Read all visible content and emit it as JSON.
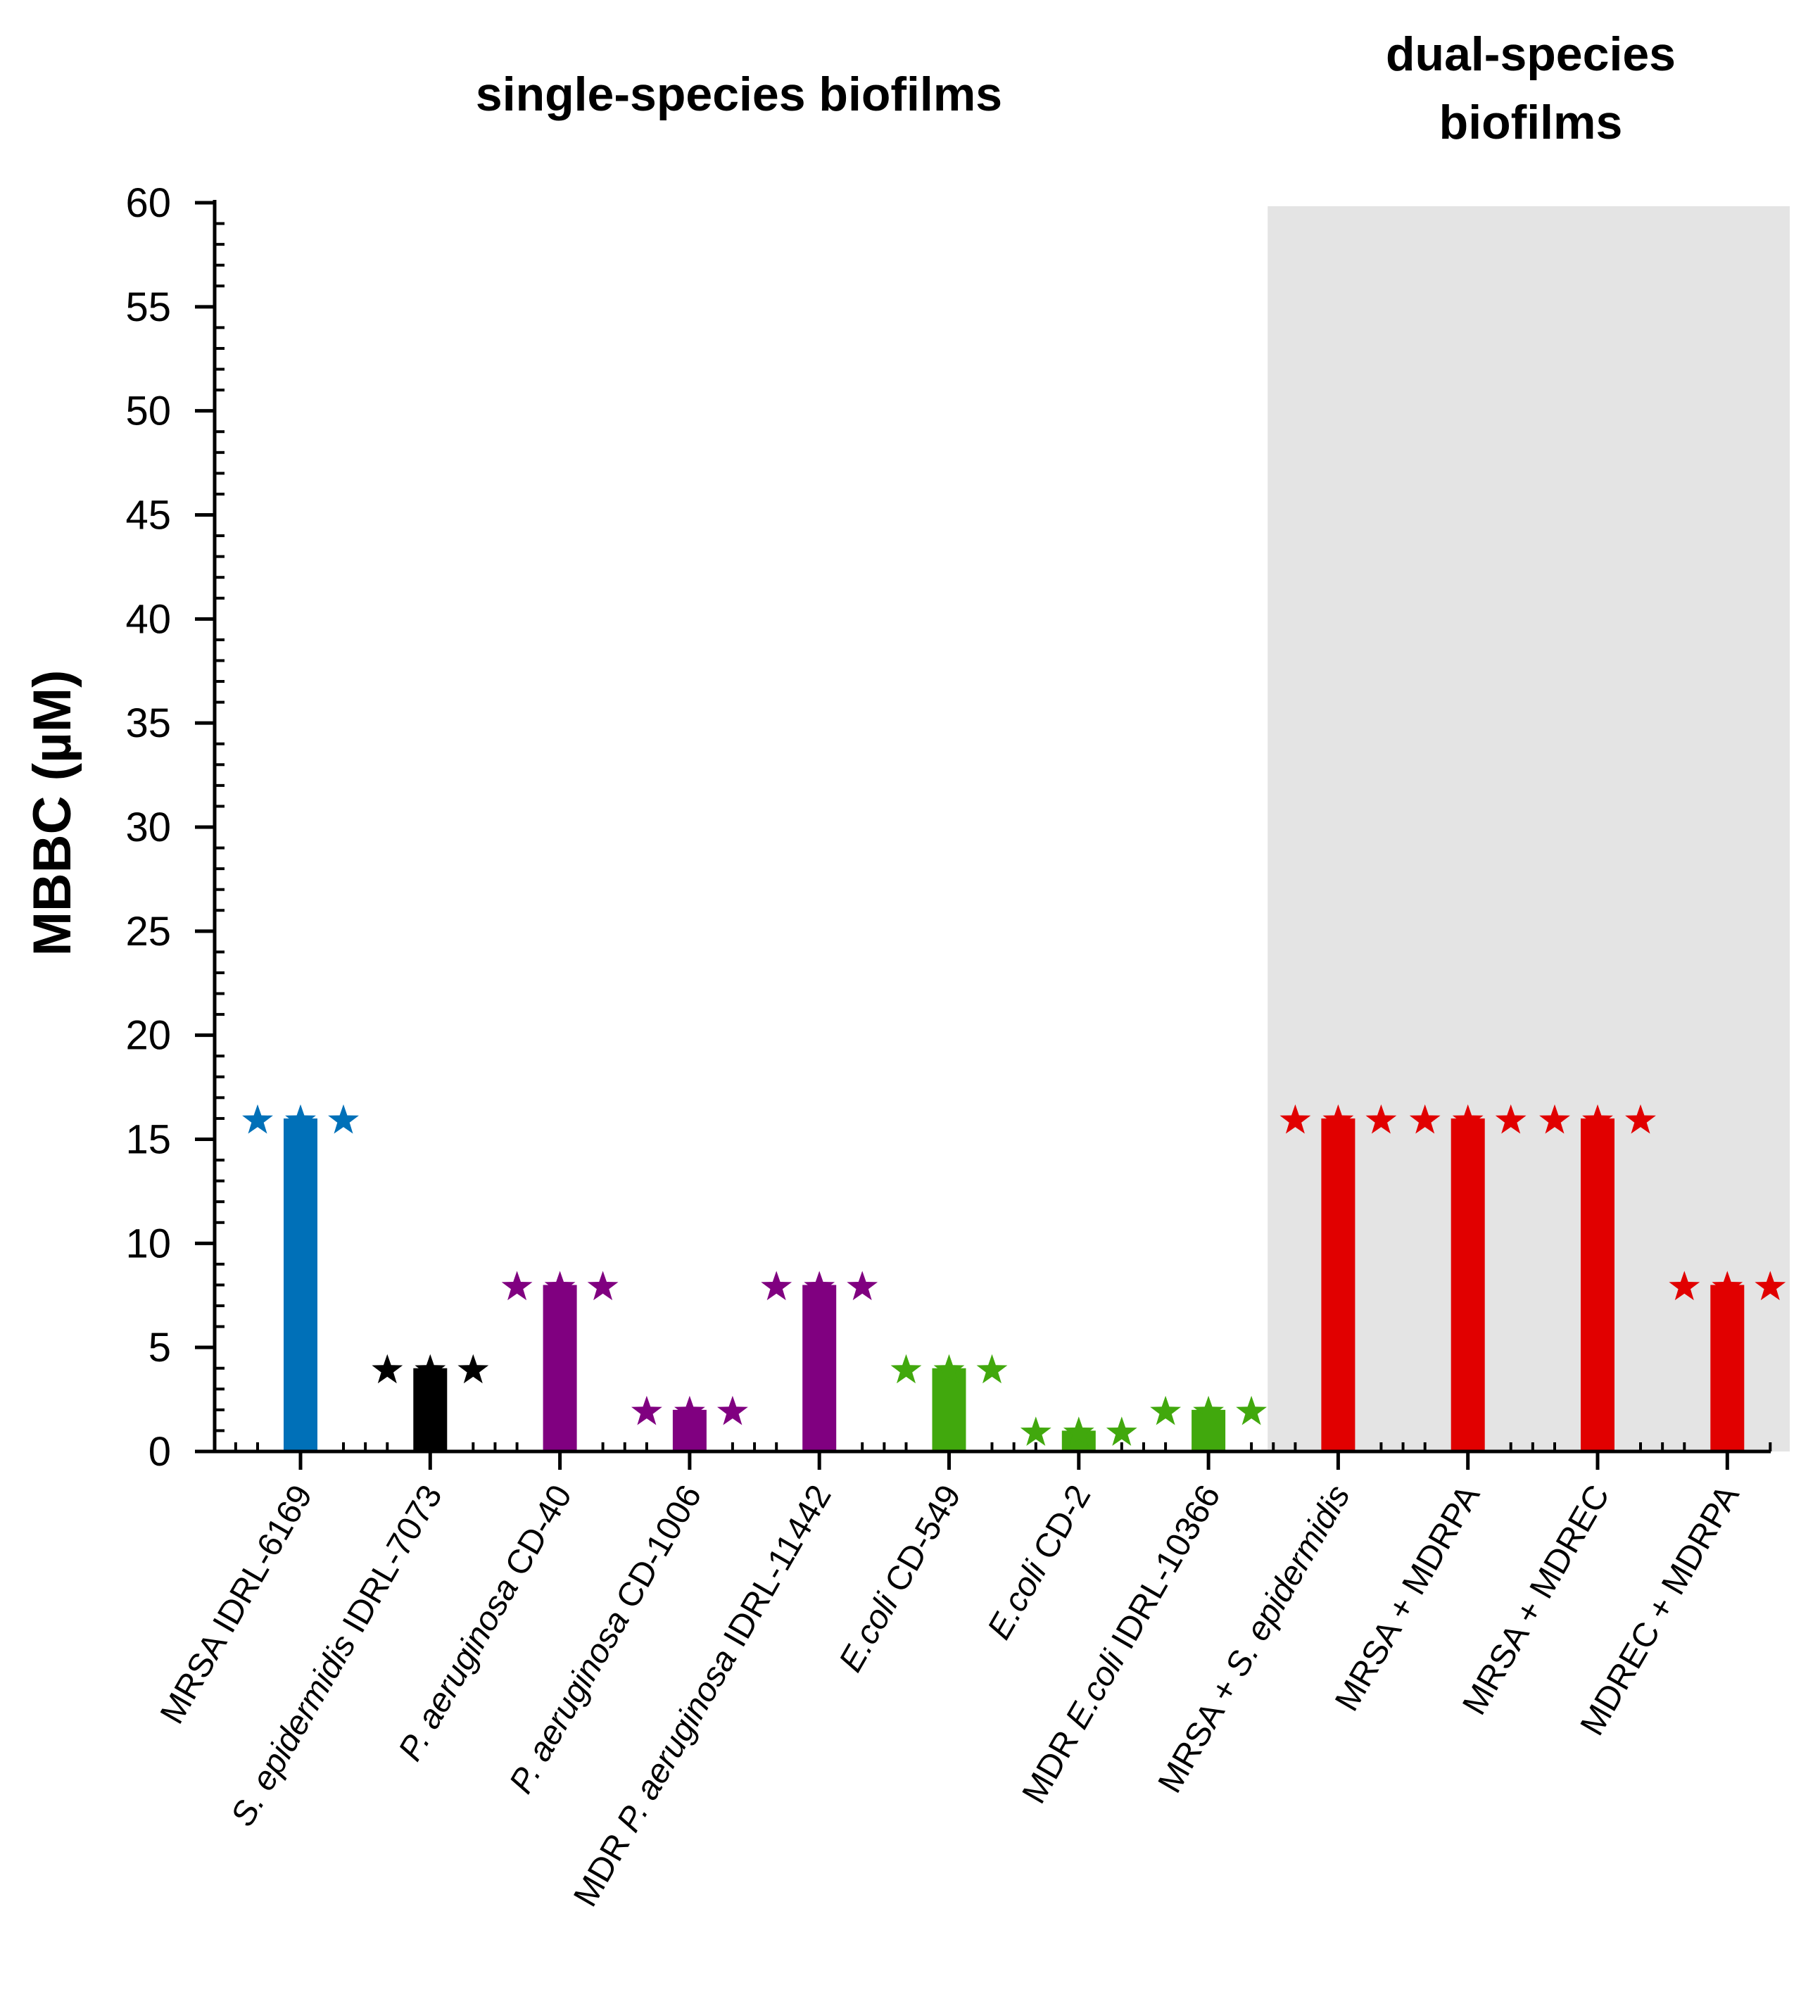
{
  "chart_data": {
    "type": "bar",
    "title": "",
    "section_labels": {
      "single": "single-species biofilms",
      "dual_line1": "dual-species",
      "dual_line2": "biofilms"
    },
    "ylabel": "MBBC (µM)",
    "xlabel": "",
    "ylim": [
      0,
      60
    ],
    "yticks": [
      0,
      5,
      10,
      15,
      20,
      25,
      30,
      35,
      40,
      45,
      50,
      55,
      60
    ],
    "categories": [
      {
        "label": "MRSA IDRL-6169",
        "parts": [
          {
            "t": "MRSA IDRL-6169",
            "i": false
          }
        ]
      },
      {
        "label": "S. epidermidis IDRL-7073",
        "parts": [
          {
            "t": "S. epidermidis",
            "i": true
          },
          {
            "t": " IDRL-7073",
            "i": false
          }
        ]
      },
      {
        "label": "P. aeruginosa CD-40",
        "parts": [
          {
            "t": "P. aeruginosa",
            "i": true
          },
          {
            "t": " CD-40",
            "i": false
          }
        ]
      },
      {
        "label": "P. aeruginosa CD-1006",
        "parts": [
          {
            "t": "P. aeruginosa",
            "i": true
          },
          {
            "t": " CD-1006",
            "i": false
          }
        ]
      },
      {
        "label": "MDR P. aeruginosa IDRL-11442",
        "parts": [
          {
            "t": "MDR ",
            "i": false
          },
          {
            "t": "P. aeruginosa",
            "i": true
          },
          {
            "t": " IDRL-11442",
            "i": false
          }
        ]
      },
      {
        "label": "E.coli CD-549",
        "parts": [
          {
            "t": "E.coli",
            "i": true
          },
          {
            "t": " CD-549",
            "i": false
          }
        ]
      },
      {
        "label": "E.coli CD-2",
        "parts": [
          {
            "t": "E.coli",
            "i": true
          },
          {
            "t": " CD-2",
            "i": false
          }
        ]
      },
      {
        "label": "MDR E.coli IDRL-10366",
        "parts": [
          {
            "t": "MDR ",
            "i": false
          },
          {
            "t": "E.coli",
            "i": true
          },
          {
            "t": " IDRL-10366",
            "i": false
          }
        ]
      },
      {
        "label": "MRSA + S. epidermidis",
        "parts": [
          {
            "t": "MRSA + ",
            "i": false
          },
          {
            "t": "S. epidermidis",
            "i": true
          }
        ]
      },
      {
        "label": "MRSA + MDRPA",
        "parts": [
          {
            "t": "MRSA + MDRPA",
            "i": false
          }
        ]
      },
      {
        "label": "MRSA + MDREC",
        "parts": [
          {
            "t": "MRSA + MDREC",
            "i": false
          }
        ]
      },
      {
        "label": "MDREC + MDRPA",
        "parts": [
          {
            "t": "MDREC + MDRPA",
            "i": false
          }
        ]
      }
    ],
    "values": [
      16,
      4,
      8,
      2,
      8,
      4,
      1,
      2,
      16,
      16,
      16,
      8
    ],
    "replicate_points": [
      [
        16,
        16,
        16
      ],
      [
        4,
        4,
        4
      ],
      [
        8,
        8,
        8
      ],
      [
        2,
        2,
        2
      ],
      [
        8,
        8,
        8
      ],
      [
        4,
        4,
        4
      ],
      [
        1,
        1,
        1
      ],
      [
        2,
        2,
        2
      ],
      [
        16,
        16,
        16
      ],
      [
        16,
        16,
        16
      ],
      [
        16,
        16,
        16
      ],
      [
        8,
        8,
        8
      ]
    ],
    "colors": [
      "#0070b8",
      "#000000",
      "#800080",
      "#800080",
      "#800080",
      "#41a80d",
      "#41a80d",
      "#41a80d",
      "#e10000",
      "#e10000",
      "#e10000",
      "#e10000"
    ],
    "shaded_region": {
      "from_category": 8,
      "to_category": 11,
      "color": "#e4e4e4",
      "label": "dual-species biofilms"
    },
    "marker": "star",
    "grid": false,
    "legend": "none"
  }
}
